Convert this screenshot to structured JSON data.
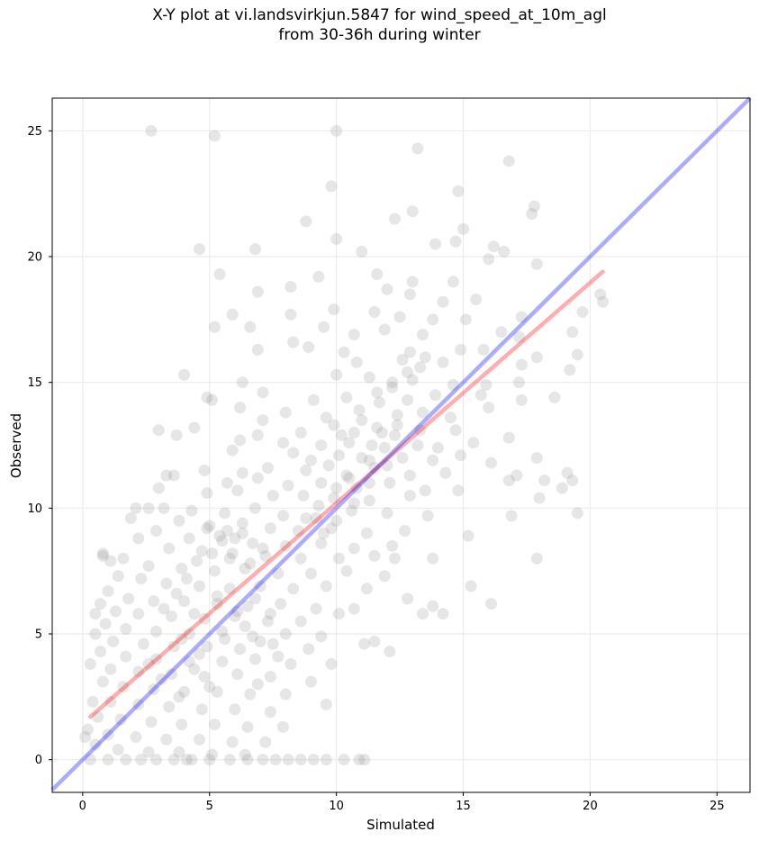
{
  "chart_data": {
    "type": "scatter",
    "title_line1": "X-Y plot at vi.landsvirkjun.5847 for wind_speed_at_10m_agl",
    "title_line2": "from 30-36h during winter",
    "xlabel": "Simulated",
    "ylabel": "Observed",
    "xlim": [
      -1.2,
      26.3
    ],
    "ylim": [
      -1.3,
      26.3
    ],
    "xticks": [
      0,
      5,
      10,
      15,
      20,
      25
    ],
    "yticks": [
      0,
      5,
      10,
      15,
      20,
      25
    ],
    "grid": true,
    "point_color": "#808080",
    "identity_line": {
      "color": "#0000ff",
      "from": [
        -1.2,
        -1.2
      ],
      "to": [
        26.3,
        26.3
      ]
    },
    "fit_line": {
      "color": "#ff0000",
      "from": [
        0.3,
        1.7
      ],
      "to": [
        20.5,
        19.4
      ]
    },
    "points": [
      [
        2.7,
        25.0
      ],
      [
        5.2,
        24.8
      ],
      [
        10.0,
        25.0
      ],
      [
        13.2,
        24.3
      ],
      [
        16.8,
        23.8
      ],
      [
        17.8,
        22.0
      ],
      [
        17.7,
        21.7
      ],
      [
        9.8,
        22.8
      ],
      [
        14.8,
        22.6
      ],
      [
        8.8,
        21.4
      ],
      [
        12.3,
        21.5
      ],
      [
        13.0,
        21.8
      ],
      [
        15.0,
        21.1
      ],
      [
        4.6,
        20.3
      ],
      [
        6.8,
        20.3
      ],
      [
        10.0,
        20.7
      ],
      [
        11.0,
        20.2
      ],
      [
        13.9,
        20.5
      ],
      [
        14.7,
        20.6
      ],
      [
        16.2,
        20.4
      ],
      [
        16.6,
        20.2
      ],
      [
        17.9,
        19.7
      ],
      [
        5.4,
        19.3
      ],
      [
        9.3,
        19.2
      ],
      [
        11.6,
        19.3
      ],
      [
        13.0,
        19.0
      ],
      [
        14.6,
        19.0
      ],
      [
        16.0,
        19.9
      ],
      [
        8.2,
        18.8
      ],
      [
        6.9,
        18.6
      ],
      [
        12.0,
        18.7
      ],
      [
        12.9,
        18.5
      ],
      [
        14.2,
        18.2
      ],
      [
        15.5,
        18.3
      ],
      [
        20.4,
        18.5
      ],
      [
        20.5,
        18.2
      ],
      [
        5.9,
        17.7
      ],
      [
        8.2,
        17.7
      ],
      [
        9.9,
        17.9
      ],
      [
        11.5,
        17.8
      ],
      [
        12.5,
        17.6
      ],
      [
        13.8,
        17.5
      ],
      [
        15.1,
        17.5
      ],
      [
        17.3,
        17.6
      ],
      [
        19.7,
        17.8
      ],
      [
        5.2,
        17.2
      ],
      [
        6.6,
        17.2
      ],
      [
        9.5,
        17.2
      ],
      [
        11.9,
        17.1
      ],
      [
        13.4,
        16.9
      ],
      [
        16.5,
        17.0
      ],
      [
        17.2,
        16.8
      ],
      [
        19.3,
        17.0
      ],
      [
        10.7,
        16.9
      ],
      [
        8.3,
        16.6
      ],
      [
        8.9,
        16.4
      ],
      [
        6.9,
        16.3
      ],
      [
        10.3,
        16.2
      ],
      [
        12.9,
        16.2
      ],
      [
        14.9,
        16.3
      ],
      [
        15.8,
        16.3
      ],
      [
        19.5,
        16.1
      ],
      [
        10.8,
        15.8
      ],
      [
        12.6,
        15.9
      ],
      [
        13.3,
        15.6
      ],
      [
        14.2,
        15.8
      ],
      [
        17.3,
        15.7
      ],
      [
        17.9,
        16.0
      ],
      [
        19.2,
        15.5
      ],
      [
        4.0,
        15.3
      ],
      [
        10.0,
        15.3
      ],
      [
        11.3,
        15.2
      ],
      [
        12.2,
        15.0
      ],
      [
        13.0,
        15.1
      ],
      [
        14.6,
        14.9
      ],
      [
        15.9,
        14.9
      ],
      [
        17.2,
        15.0
      ],
      [
        6.3,
        15.0
      ],
      [
        7.1,
        14.6
      ],
      [
        9.1,
        14.3
      ],
      [
        10.4,
        14.4
      ],
      [
        11.6,
        14.6
      ],
      [
        12.8,
        14.3
      ],
      [
        13.9,
        14.5
      ],
      [
        15.7,
        14.5
      ],
      [
        17.3,
        14.3
      ],
      [
        18.6,
        14.4
      ],
      [
        4.9,
        14.4
      ],
      [
        5.1,
        14.3
      ],
      [
        6.2,
        14.0
      ],
      [
        8.0,
        13.8
      ],
      [
        9.6,
        13.6
      ],
      [
        10.9,
        13.9
      ],
      [
        12.4,
        13.7
      ],
      [
        13.4,
        13.8
      ],
      [
        14.5,
        13.6
      ],
      [
        16.0,
        14.0
      ],
      [
        4.4,
        13.2
      ],
      [
        7.1,
        13.5
      ],
      [
        8.6,
        13.0
      ],
      [
        9.9,
        13.3
      ],
      [
        10.7,
        13.0
      ],
      [
        11.6,
        13.2
      ],
      [
        12.3,
        12.9
      ],
      [
        13.3,
        13.1
      ],
      [
        14.7,
        13.1
      ],
      [
        16.8,
        12.8
      ],
      [
        3.0,
        13.1
      ],
      [
        6.2,
        12.7
      ],
      [
        6.9,
        12.9
      ],
      [
        7.9,
        12.6
      ],
      [
        9.4,
        12.5
      ],
      [
        10.5,
        12.6
      ],
      [
        11.9,
        12.4
      ],
      [
        13.2,
        12.5
      ],
      [
        14.0,
        12.4
      ],
      [
        15.4,
        12.6
      ],
      [
        3.7,
        12.9
      ],
      [
        5.9,
        12.3
      ],
      [
        8.3,
        12.2
      ],
      [
        9.0,
        11.9
      ],
      [
        10.1,
        12.1
      ],
      [
        11.3,
        11.9
      ],
      [
        12.6,
        12.0
      ],
      [
        13.8,
        11.9
      ],
      [
        14.9,
        12.1
      ],
      [
        16.1,
        11.8
      ],
      [
        17.9,
        12.0
      ],
      [
        4.8,
        11.5
      ],
      [
        6.3,
        11.4
      ],
      [
        7.3,
        11.6
      ],
      [
        8.8,
        11.5
      ],
      [
        10.4,
        11.3
      ],
      [
        11.5,
        11.6
      ],
      [
        12.9,
        11.3
      ],
      [
        14.3,
        11.4
      ],
      [
        17.1,
        11.3
      ],
      [
        19.1,
        11.4
      ],
      [
        3.3,
        11.3
      ],
      [
        3.6,
        11.3
      ],
      [
        5.7,
        11.0
      ],
      [
        6.9,
        11.2
      ],
      [
        8.1,
        10.9
      ],
      [
        9.4,
        11.0
      ],
      [
        10.8,
        10.8
      ],
      [
        12.1,
        11.0
      ],
      [
        13.5,
        10.7
      ],
      [
        16.8,
        11.1
      ],
      [
        18.2,
        11.1
      ],
      [
        19.3,
        11.1
      ],
      [
        3.0,
        10.8
      ],
      [
        4.9,
        10.6
      ],
      [
        6.1,
        10.7
      ],
      [
        7.5,
        10.5
      ],
      [
        8.7,
        10.5
      ],
      [
        9.9,
        10.4
      ],
      [
        11.3,
        10.3
      ],
      [
        12.9,
        10.5
      ],
      [
        14.8,
        10.7
      ],
      [
        18.0,
        10.4
      ],
      [
        18.9,
        10.8
      ],
      [
        2.1,
        10.0
      ],
      [
        2.6,
        10.0
      ],
      [
        3.2,
        10.0
      ],
      [
        4.3,
        9.9
      ],
      [
        5.6,
        9.8
      ],
      [
        6.8,
        10.0
      ],
      [
        7.9,
        9.7
      ],
      [
        9.2,
        9.6
      ],
      [
        10.6,
        9.9
      ],
      [
        12.0,
        9.8
      ],
      [
        13.6,
        9.7
      ],
      [
        16.9,
        9.7
      ],
      [
        19.5,
        9.8
      ],
      [
        1.9,
        9.6
      ],
      [
        3.8,
        9.5
      ],
      [
        5.0,
        9.3
      ],
      [
        6.3,
        9.4
      ],
      [
        7.4,
        9.2
      ],
      [
        8.5,
        9.1
      ],
      [
        9.8,
        9.2
      ],
      [
        11.2,
        9.0
      ],
      [
        12.7,
        9.1
      ],
      [
        15.2,
        8.9
      ],
      [
        2.9,
        9.1
      ],
      [
        4.2,
        8.8
      ],
      [
        5.5,
        8.7
      ],
      [
        6.7,
        8.6
      ],
      [
        8.0,
        8.5
      ],
      [
        9.4,
        8.6
      ],
      [
        10.7,
        8.4
      ],
      [
        12.2,
        8.5
      ],
      [
        2.2,
        8.8
      ],
      [
        3.4,
        8.4
      ],
      [
        4.7,
        8.3
      ],
      [
        5.9,
        8.2
      ],
      [
        7.2,
        8.1
      ],
      [
        8.6,
        8.0
      ],
      [
        10.1,
        8.0
      ],
      [
        11.5,
        8.1
      ],
      [
        12.3,
        8.0
      ],
      [
        13.8,
        8.0
      ],
      [
        17.9,
        8.0
      ],
      [
        0.8,
        8.2
      ],
      [
        0.8,
        8.1
      ],
      [
        1.1,
        7.9
      ],
      [
        1.6,
        8.0
      ],
      [
        2.6,
        7.7
      ],
      [
        3.9,
        7.6
      ],
      [
        5.2,
        7.5
      ],
      [
        6.4,
        7.6
      ],
      [
        7.7,
        7.4
      ],
      [
        9.0,
        7.4
      ],
      [
        10.4,
        7.5
      ],
      [
        11.9,
        7.3
      ],
      [
        1.4,
        7.3
      ],
      [
        2.3,
        7.2
      ],
      [
        3.3,
        7.0
      ],
      [
        4.6,
        6.9
      ],
      [
        5.8,
        6.8
      ],
      [
        7.0,
        6.9
      ],
      [
        8.3,
        6.8
      ],
      [
        9.6,
        6.9
      ],
      [
        11.2,
        6.8
      ],
      [
        15.3,
        6.9
      ],
      [
        1.0,
        6.7
      ],
      [
        1.8,
        6.4
      ],
      [
        2.8,
        6.3
      ],
      [
        4.0,
        6.3
      ],
      [
        5.3,
        6.2
      ],
      [
        6.5,
        6.1
      ],
      [
        7.8,
        6.2
      ],
      [
        9.2,
        6.0
      ],
      [
        10.7,
        6.0
      ],
      [
        12.8,
        6.4
      ],
      [
        13.8,
        6.1
      ],
      [
        16.1,
        6.2
      ],
      [
        0.7,
        6.2
      ],
      [
        1.3,
        5.9
      ],
      [
        2.2,
        5.8
      ],
      [
        3.5,
        5.7
      ],
      [
        4.8,
        5.6
      ],
      [
        6.0,
        5.7
      ],
      [
        7.3,
        5.5
      ],
      [
        8.6,
        5.5
      ],
      [
        10.1,
        5.8
      ],
      [
        13.4,
        5.8
      ],
      [
        14.2,
        5.8
      ],
      [
        0.5,
        5.8
      ],
      [
        0.9,
        5.4
      ],
      [
        1.7,
        5.2
      ],
      [
        2.9,
        5.1
      ],
      [
        4.2,
        5.0
      ],
      [
        5.5,
        5.1
      ],
      [
        6.7,
        4.9
      ],
      [
        8.0,
        5.0
      ],
      [
        9.4,
        4.9
      ],
      [
        0.5,
        5.0
      ],
      [
        1.2,
        4.7
      ],
      [
        2.4,
        4.6
      ],
      [
        3.6,
        4.5
      ],
      [
        4.9,
        4.5
      ],
      [
        6.2,
        4.4
      ],
      [
        7.5,
        4.6
      ],
      [
        8.9,
        4.4
      ],
      [
        11.1,
        4.6
      ],
      [
        11.5,
        4.7
      ],
      [
        12.1,
        4.3
      ],
      [
        0.7,
        4.3
      ],
      [
        1.7,
        4.1
      ],
      [
        2.9,
        4.0
      ],
      [
        4.2,
        3.9
      ],
      [
        5.5,
        3.9
      ],
      [
        6.8,
        4.0
      ],
      [
        8.2,
        3.8
      ],
      [
        9.8,
        3.8
      ],
      [
        0.3,
        3.8
      ],
      [
        1.1,
        3.6
      ],
      [
        2.2,
        3.5
      ],
      [
        3.5,
        3.4
      ],
      [
        4.8,
        3.3
      ],
      [
        6.1,
        3.4
      ],
      [
        7.4,
        3.3
      ],
      [
        9.0,
        3.1
      ],
      [
        0.8,
        3.1
      ],
      [
        1.6,
        2.9
      ],
      [
        2.8,
        2.8
      ],
      [
        4.0,
        2.7
      ],
      [
        5.3,
        2.7
      ],
      [
        6.6,
        2.6
      ],
      [
        8.0,
        2.6
      ],
      [
        9.6,
        2.2
      ],
      [
        0.4,
        2.3
      ],
      [
        1.1,
        2.3
      ],
      [
        2.2,
        2.2
      ],
      [
        3.4,
        2.1
      ],
      [
        4.7,
        2.0
      ],
      [
        6.0,
        2.0
      ],
      [
        7.4,
        1.9
      ],
      [
        0.6,
        1.7
      ],
      [
        1.5,
        1.6
      ],
      [
        2.7,
        1.5
      ],
      [
        3.9,
        1.4
      ],
      [
        5.2,
        1.4
      ],
      [
        6.5,
        1.3
      ],
      [
        7.9,
        1.3
      ],
      [
        0.2,
        1.2
      ],
      [
        1.0,
        1.0
      ],
      [
        2.1,
        0.9
      ],
      [
        3.3,
        0.8
      ],
      [
        4.6,
        0.8
      ],
      [
        5.9,
        0.7
      ],
      [
        7.2,
        0.7
      ],
      [
        0.5,
        0.6
      ],
      [
        1.4,
        0.4
      ],
      [
        2.6,
        0.3
      ],
      [
        3.8,
        0.3
      ],
      [
        5.1,
        0.2
      ],
      [
        6.4,
        0.2
      ],
      [
        0.1,
        0.9
      ],
      [
        0.3,
        0.0
      ],
      [
        1.0,
        0.0
      ],
      [
        1.7,
        0.0
      ],
      [
        2.3,
        0.0
      ],
      [
        2.9,
        0.0
      ],
      [
        3.6,
        0.0
      ],
      [
        4.3,
        0.0
      ],
      [
        5.0,
        0.0
      ],
      [
        5.8,
        0.0
      ],
      [
        6.5,
        0.0
      ],
      [
        7.1,
        0.0
      ],
      [
        7.6,
        0.0
      ],
      [
        8.1,
        0.0
      ],
      [
        8.6,
        0.0
      ],
      [
        9.1,
        0.0
      ],
      [
        9.6,
        0.0
      ],
      [
        10.3,
        0.0
      ],
      [
        10.9,
        0.0
      ],
      [
        11.1,
        0.0
      ],
      [
        4.1,
        0.0
      ],
      [
        5.4,
        8.9
      ],
      [
        5.7,
        9.1
      ],
      [
        6.0,
        8.8
      ],
      [
        5.1,
        8.2
      ],
      [
        6.3,
        9.0
      ],
      [
        4.5,
        7.9
      ],
      [
        5.8,
        8.0
      ],
      [
        6.6,
        7.8
      ],
      [
        7.1,
        8.4
      ],
      [
        4.9,
        9.2
      ],
      [
        3.2,
        6.0
      ],
      [
        3.7,
        6.6
      ],
      [
        4.1,
        7.2
      ],
      [
        4.4,
        5.8
      ],
      [
        5.3,
        6.5
      ],
      [
        6.1,
        5.9
      ],
      [
        6.8,
        6.4
      ],
      [
        7.4,
        5.8
      ],
      [
        3.9,
        4.8
      ],
      [
        4.6,
        4.2
      ],
      [
        5.6,
        4.8
      ],
      [
        6.4,
        5.3
      ],
      [
        7.0,
        4.7
      ],
      [
        7.7,
        4.1
      ],
      [
        2.6,
        3.8
      ],
      [
        3.1,
        3.2
      ],
      [
        3.8,
        2.5
      ],
      [
        4.4,
        3.6
      ],
      [
        5.0,
        2.9
      ],
      [
        6.9,
        3.0
      ],
      [
        8.8,
        9.6
      ],
      [
        9.3,
        10.1
      ],
      [
        10.0,
        10.8
      ],
      [
        10.5,
        11.2
      ],
      [
        11.0,
        12.0
      ],
      [
        11.4,
        12.5
      ],
      [
        11.8,
        13.0
      ],
      [
        12.4,
        13.3
      ],
      [
        9.7,
        11.7
      ],
      [
        10.2,
        12.9
      ],
      [
        11.0,
        13.5
      ],
      [
        11.7,
        14.2
      ],
      [
        12.2,
        14.8
      ],
      [
        12.8,
        15.4
      ],
      [
        13.5,
        16.0
      ],
      [
        9.5,
        9.0
      ],
      [
        10.0,
        9.5
      ],
      [
        10.7,
        10.2
      ],
      [
        11.3,
        11.0
      ],
      [
        12.0,
        11.7
      ]
    ]
  }
}
